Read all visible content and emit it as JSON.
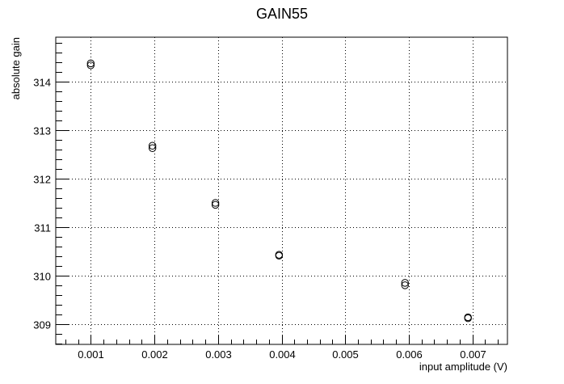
{
  "chart_data": {
    "type": "scatter",
    "title": "GAIN55",
    "xlabel": "input amplitude (V)",
    "ylabel": "absolute gain",
    "xlim": [
      0.00045,
      0.00755
    ],
    "ylim": [
      308.58,
      314.92
    ],
    "x_ticks": [
      0.001,
      0.002,
      0.003,
      0.004,
      0.005,
      0.006,
      0.007
    ],
    "x_tick_labels": [
      "0.001",
      "0.002",
      "0.003",
      "0.004",
      "0.005",
      "0.006",
      "0.007"
    ],
    "y_ticks": [
      309,
      310,
      311,
      312,
      313,
      314
    ],
    "y_tick_labels": [
      "309",
      "310",
      "311",
      "312",
      "313",
      "314"
    ],
    "grid": true,
    "marker": "open-circle",
    "series": [
      {
        "points": [
          {
            "x": 0.001,
            "y": 314.38
          },
          {
            "x": 0.001,
            "y": 314.34
          },
          {
            "x": 0.00197,
            "y": 312.68
          },
          {
            "x": 0.00197,
            "y": 312.63
          },
          {
            "x": 0.00296,
            "y": 311.5
          },
          {
            "x": 0.00296,
            "y": 311.46
          },
          {
            "x": 0.00396,
            "y": 310.43
          },
          {
            "x": 0.00396,
            "y": 310.41
          },
          {
            "x": 0.00594,
            "y": 309.85
          },
          {
            "x": 0.00594,
            "y": 309.8
          },
          {
            "x": 0.00693,
            "y": 309.14
          },
          {
            "x": 0.00693,
            "y": 309.12
          }
        ]
      }
    ]
  }
}
